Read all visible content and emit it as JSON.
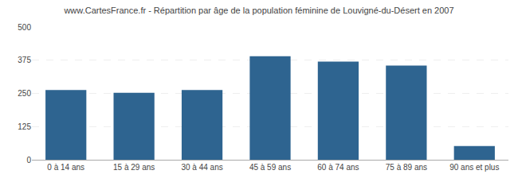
{
  "chart_data": {
    "type": "bar",
    "title": "www.CartesFrance.fr - Répartition par âge de la population féminine de Louvigné-du-Désert en 2007",
    "categories": [
      "0 à 14 ans",
      "15 à 29 ans",
      "30 à 44 ans",
      "45 à 59 ans",
      "60 à 74 ans",
      "75 à 89 ans",
      "90 ans et plus"
    ],
    "values": [
      263,
      252,
      263,
      390,
      370,
      355,
      52
    ],
    "color": "#2e6490",
    "ylim": [
      0,
      500
    ],
    "yticks": [
      0,
      125,
      250,
      375,
      500
    ],
    "grid": true
  }
}
